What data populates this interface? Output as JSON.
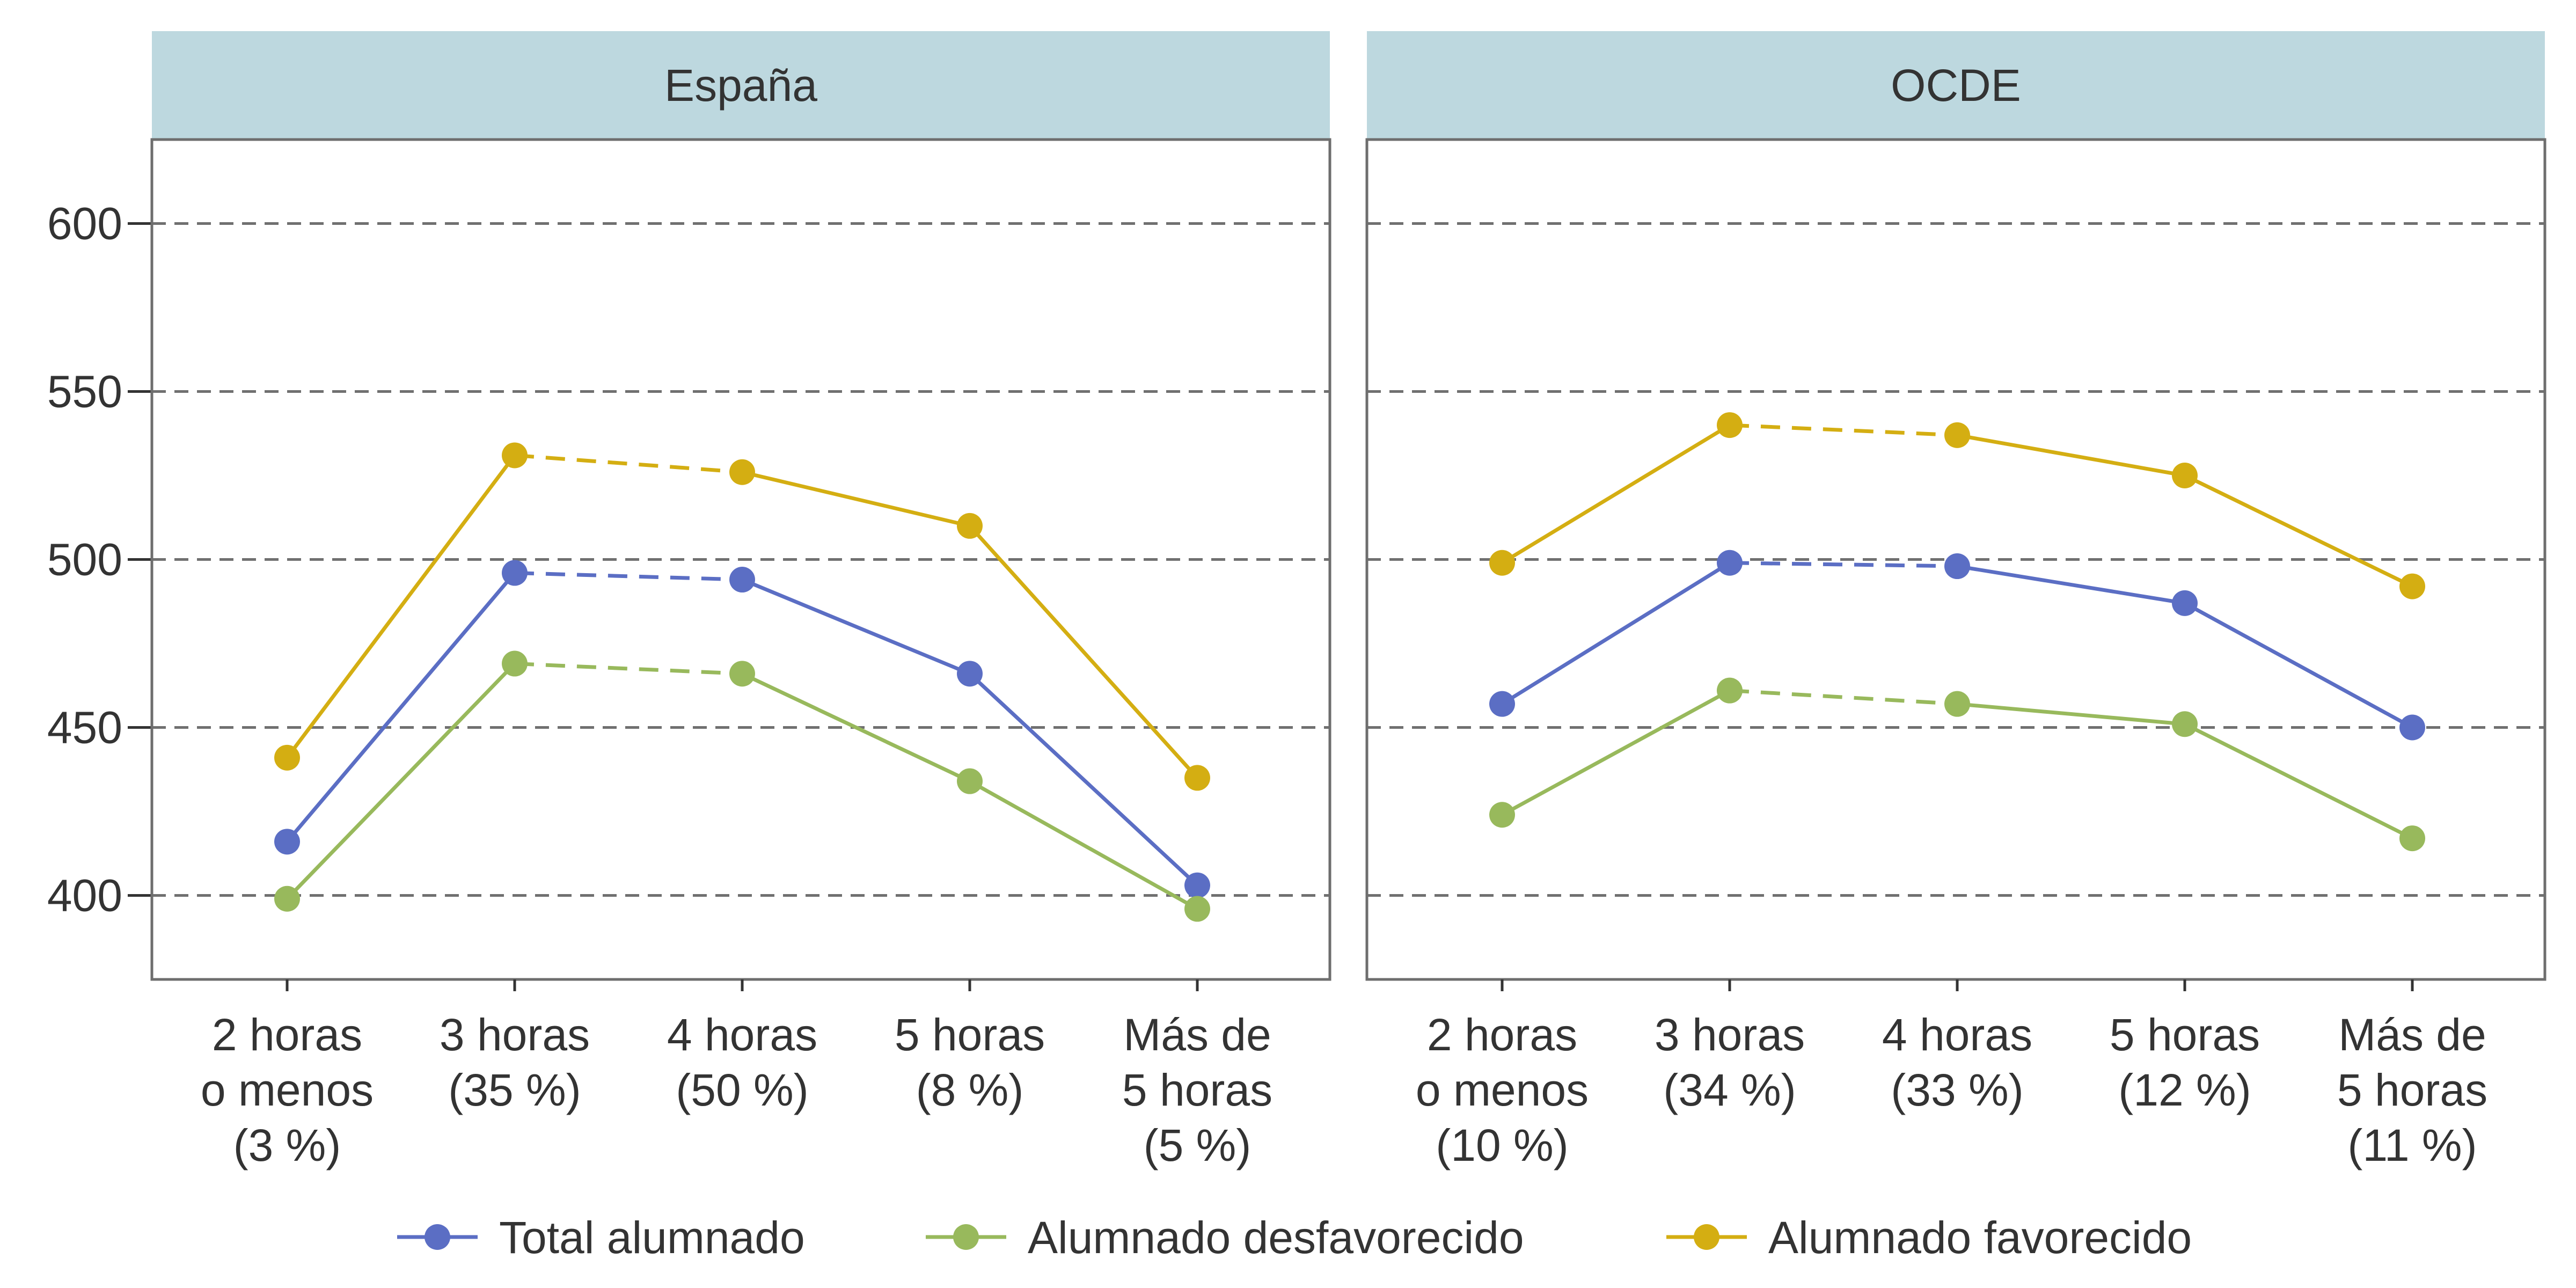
{
  "chart_data": {
    "type": "line",
    "ylim": [
      375,
      625
    ],
    "yticks": [
      400,
      450,
      500,
      550,
      600
    ],
    "grid": "horizontal dashed",
    "legend_position": "bottom",
    "colors": {
      "total": "#5b6ec4",
      "desfavorecido": "#98b95c",
      "favorecido": "#d4ae12",
      "strip": "#bdd8df",
      "grid": "#707070"
    },
    "legend": [
      {
        "key": "total",
        "label": "Total alumnado"
      },
      {
        "key": "desfavorecido",
        "label": "Alumnado desfavorecido"
      },
      {
        "key": "favorecido",
        "label": "Alumnado favorecido"
      }
    ],
    "panels": [
      {
        "title": "España",
        "categories": [
          [
            "2 horas",
            "o menos",
            "(3 %)"
          ],
          [
            "3 horas",
            "(35 %)"
          ],
          [
            "4 horas",
            "(50 %)"
          ],
          [
            "5 horas",
            "(8 %)"
          ],
          [
            "Más de",
            "5 horas",
            "(5 %)"
          ]
        ],
        "series": [
          {
            "key": "total",
            "values": [
              416,
              496,
              494,
              466,
              403
            ]
          },
          {
            "key": "desfavorecido",
            "values": [
              399,
              469,
              466,
              434,
              396
            ]
          },
          {
            "key": "favorecido",
            "values": [
              441,
              531,
              526,
              510,
              435
            ]
          }
        ]
      },
      {
        "title": "OCDE",
        "categories": [
          [
            "2 horas",
            "o menos",
            "(10 %)"
          ],
          [
            "3 horas",
            "(34 %)"
          ],
          [
            "4 horas",
            "(33 %)"
          ],
          [
            "5 horas",
            "(12 %)"
          ],
          [
            "Más de",
            "5 horas",
            "(11 %)"
          ]
        ],
        "series": [
          {
            "key": "total",
            "values": [
              457,
              499,
              498,
              487,
              450
            ]
          },
          {
            "key": "desfavorecido",
            "values": [
              424,
              461,
              457,
              451,
              417
            ]
          },
          {
            "key": "favorecido",
            "values": [
              499,
              540,
              537,
              525,
              492
            ]
          }
        ]
      }
    ]
  }
}
